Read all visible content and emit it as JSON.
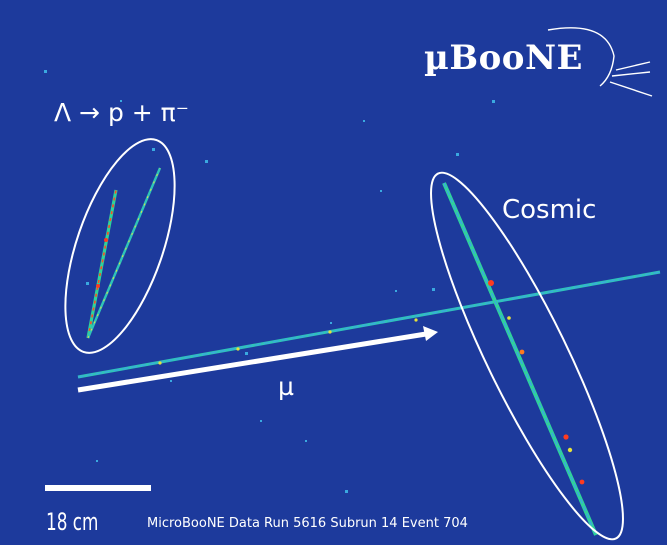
{
  "image": {
    "background_color": "#1d3a9c",
    "logo_text": "µBooNE",
    "labels": {
      "decay": "Λ → p + π⁻",
      "cosmic": "Cosmic",
      "muon": "µ"
    },
    "scale": {
      "text": "18 cm"
    },
    "caption": "MicroBooNE Data Run 5616 Subrun 14 Event 704",
    "colors": {
      "track_core": "#ff3b1f",
      "track_mid": "#f0e020",
      "track_edge": "#2fd39a",
      "annotation": "#ffffff"
    }
  }
}
